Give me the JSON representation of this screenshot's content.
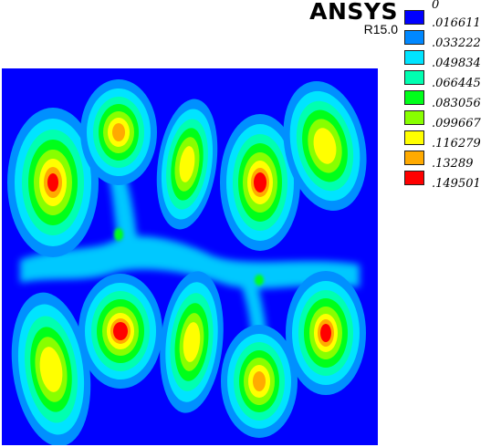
{
  "header": {
    "brand": "ANSYS",
    "version": "R15.0"
  },
  "legend": {
    "entries": [
      {
        "label": "0",
        "color": "#0000ff"
      },
      {
        "label": ".016611",
        "color": "#0088ff"
      },
      {
        "label": ".033222",
        "color": "#00e4ff"
      },
      {
        "label": ".049834",
        "color": "#00ffb0"
      },
      {
        "label": ".066445",
        "color": "#00ff1a"
      },
      {
        "label": ".083056",
        "color": "#88ff00"
      },
      {
        "label": ".099667",
        "color": "#ffff00"
      },
      {
        "label": ".116279",
        "color": "#ffff00"
      },
      {
        "label": ".13289",
        "color": "#ffaa00"
      },
      {
        "label": ".149501",
        "color": "#ff0000"
      }
    ]
  }
}
